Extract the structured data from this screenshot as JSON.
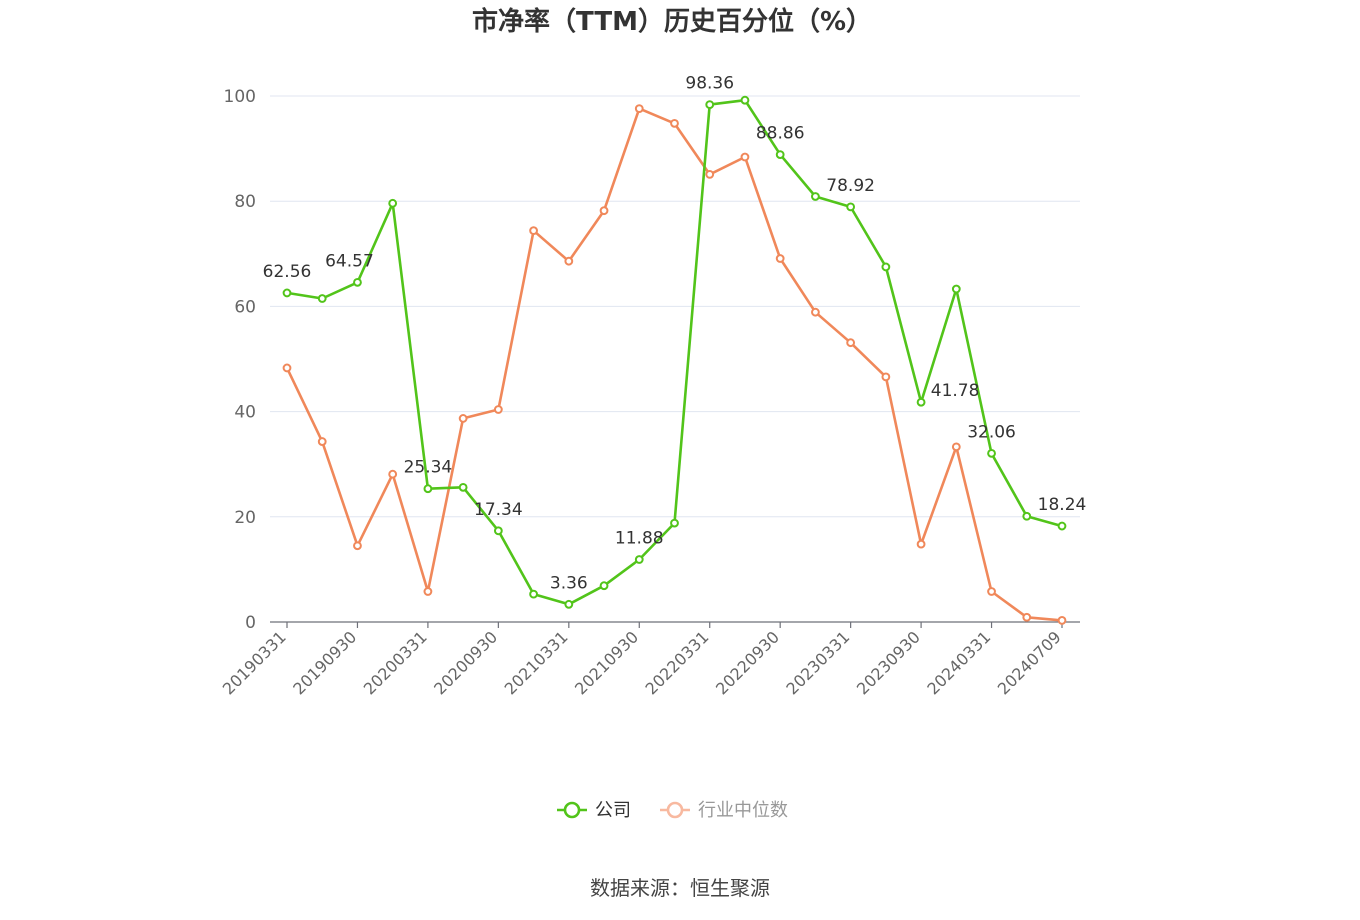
{
  "chart_data": {
    "type": "line",
    "title": "市净率（TTM）历史百分位（%）",
    "source": "数据来源：恒生聚源",
    "xlabel": "",
    "ylabel": "",
    "ylim": [
      0,
      100
    ],
    "yticks": [
      0,
      20,
      40,
      60,
      80,
      100
    ],
    "grid": true,
    "legend_position": "bottom",
    "x": [
      "20190331",
      "20190630",
      "20190930",
      "20191231",
      "20200331",
      "20200630",
      "20200930",
      "20201231",
      "20210331",
      "20210630",
      "20210930",
      "20211231",
      "20220331",
      "20220630",
      "20220930",
      "20221231",
      "20230331",
      "20230630",
      "20230930",
      "20231231",
      "20240331",
      "20240630",
      "20240709"
    ],
    "x_tick_labels": [
      "20190331",
      "20190930",
      "20200331",
      "20200930",
      "20210331",
      "20210930",
      "20220331",
      "20220930",
      "20230331",
      "20230930",
      "20240331",
      "20240709"
    ],
    "series": [
      {
        "name": "公司",
        "color": "#52c41a",
        "values": [
          62.56,
          61.5,
          64.57,
          79.6,
          25.34,
          25.6,
          17.34,
          5.3,
          3.36,
          6.9,
          11.88,
          18.8,
          98.36,
          99.2,
          88.86,
          80.9,
          78.92,
          67.5,
          41.78,
          63.3,
          32.06,
          20.1,
          18.24
        ],
        "labels": {
          "0": "62.56",
          "2": "64.57",
          "4": "25.34",
          "6": "17.34",
          "8": "3.36",
          "10": "11.88",
          "12": "98.36",
          "14": "88.86",
          "16": "78.92",
          "18": "41.78",
          "20": "32.06",
          "22": "18.24"
        }
      },
      {
        "name": "行业中位数",
        "color": "#f0885a",
        "values": [
          48.3,
          34.3,
          14.5,
          28.1,
          5.8,
          38.7,
          40.4,
          74.4,
          68.6,
          78.2,
          97.6,
          94.8,
          85.1,
          88.4,
          69.1,
          58.9,
          53.1,
          46.6,
          14.8,
          33.3,
          5.8,
          0.9,
          0.3
        ]
      }
    ]
  },
  "colors": {
    "axis": "#6e7079",
    "grid": "#e0e6f1",
    "company": "#52c41a",
    "industry": "#f0885a",
    "industry_legend": "#f8b9a0"
  }
}
